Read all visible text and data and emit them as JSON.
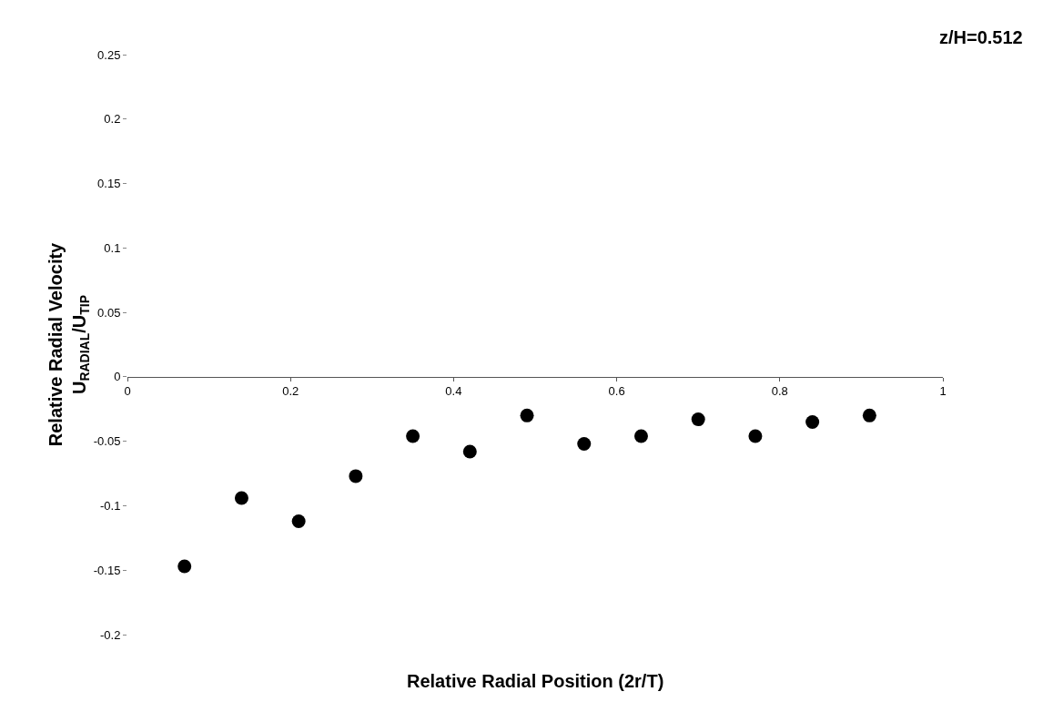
{
  "chart_data": {
    "type": "scatter",
    "xlabel": "Relative Radial Position (2r/T)",
    "ylabel": "Relative Radial Velocity\nU$_{RADIAL}$/U$_{TIP}$",
    "annotations": [
      "z/H=0.512"
    ],
    "x": [
      0.07,
      0.14,
      0.21,
      0.28,
      0.35,
      0.42,
      0.49,
      0.56,
      0.63,
      0.7,
      0.77,
      0.84,
      0.91
    ],
    "series": [
      {
        "color": "#000000",
        "values": [
          -0.147,
          -0.094,
          -0.112,
          -0.077,
          -0.046,
          -0.058,
          -0.03,
          -0.052,
          -0.046,
          -0.033,
          -0.046,
          -0.035,
          -0.03
        ]
      }
    ],
    "marker": "circle",
    "xlim": [
      0,
      1
    ],
    "xticks": [
      0,
      0.2,
      0.4,
      0.6,
      0.8,
      1
    ],
    "ylim": [
      -0.2,
      0.25
    ],
    "yticks": [
      -0.2,
      -0.15,
      -0.1,
      -0.05,
      0,
      0.05,
      0.1,
      0.15,
      0.2,
      0.25
    ]
  }
}
